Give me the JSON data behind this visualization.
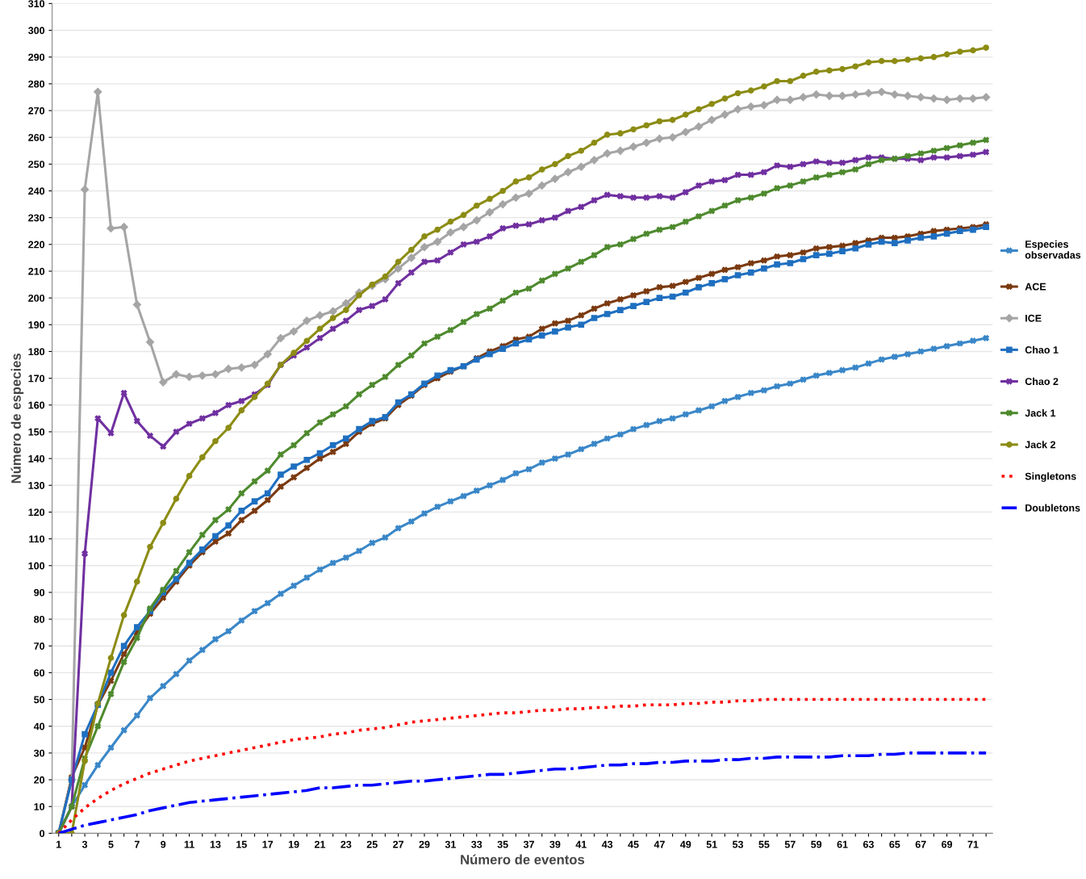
{
  "chart_data": {
    "type": "line",
    "xlabel": "Número de eventos",
    "ylabel": "Número de especies",
    "categories": [
      "1",
      null,
      "3",
      null,
      "5",
      null,
      "7",
      null,
      "9",
      null,
      "11",
      null,
      "13",
      null,
      "15",
      null,
      "17",
      null,
      "19",
      null,
      "21",
      null,
      "23",
      null,
      "25",
      null,
      "27",
      null,
      "29",
      null,
      "31",
      null,
      "33",
      null,
      "35",
      null,
      "37",
      null,
      "39",
      null,
      "41",
      null,
      "43",
      null,
      "45",
      null,
      "47",
      null,
      "49",
      null,
      "51",
      null,
      "53",
      null,
      "55",
      null,
      "57",
      null,
      "59",
      null,
      "61",
      null,
      "63",
      null,
      "65",
      null,
      "67",
      null,
      "69",
      null,
      "71",
      null
    ],
    "ylim": [
      0,
      310
    ],
    "yticks": [
      0,
      10,
      20,
      30,
      40,
      50,
      60,
      70,
      80,
      90,
      100,
      110,
      120,
      130,
      140,
      150,
      160,
      170,
      180,
      190,
      200,
      210,
      220,
      230,
      240,
      250,
      260,
      270,
      280,
      290,
      300,
      310
    ],
    "grid": "y",
    "legend": "right",
    "series": [
      {
        "name": "Especies observadas",
        "color": "#3a87c8",
        "marker": "cross",
        "line_style": "solid",
        "values": [
          0,
          10,
          18,
          25.5,
          32,
          38.5,
          44,
          50.5,
          55,
          59.5,
          64.5,
          68.5,
          72.5,
          75.5,
          79.5,
          83,
          86,
          89.5,
          92.5,
          95.5,
          98.5,
          101,
          103,
          105.5,
          108.5,
          110.5,
          114,
          116.5,
          119.5,
          122,
          124,
          126,
          128,
          130,
          132,
          134.5,
          136,
          138.5,
          140,
          141.5,
          143.5,
          145.5,
          147.5,
          149,
          151,
          152.5,
          154,
          155,
          156.5,
          158,
          159.5,
          161.5,
          163,
          164.5,
          165.5,
          167,
          168,
          169.5,
          171,
          172,
          173,
          174,
          175.5,
          177,
          178,
          179,
          180,
          181,
          182,
          183,
          184,
          185
        ]
      },
      {
        "name": "ACE",
        "color": "#7b3a10",
        "marker": "cross",
        "line_style": "solid",
        "values": [
          0,
          21,
          32,
          48,
          57,
          67,
          75,
          82,
          88,
          94,
          100,
          105,
          109,
          112,
          117,
          120.5,
          124.5,
          129.5,
          133,
          136.5,
          140,
          142.5,
          145.5,
          150,
          153,
          155,
          160,
          163.5,
          167.5,
          170,
          172.5,
          174.5,
          177.5,
          180,
          182,
          184.5,
          185.5,
          188.5,
          190.5,
          191.5,
          193.5,
          196,
          198,
          199.5,
          201,
          202.5,
          204,
          204.5,
          206,
          207.5,
          209,
          210.5,
          211.5,
          213,
          214,
          215.5,
          216,
          217,
          218.5,
          219,
          219.5,
          220.5,
          221.5,
          222.5,
          222.5,
          223,
          224,
          225,
          225.5,
          226,
          226.5,
          227.5
        ]
      },
      {
        "name": "ICE",
        "color": "#a5a5a5",
        "marker": "diamond",
        "line_style": "solid",
        "values": [
          0,
          20,
          240.5,
          277,
          226,
          226.5,
          197.5,
          183.5,
          168.5,
          171.5,
          170.5,
          171,
          171.5,
          173.5,
          174,
          175,
          179,
          185,
          187.5,
          191.5,
          193.5,
          195,
          198,
          202,
          204.5,
          207,
          211,
          215,
          219,
          221,
          224.5,
          226.5,
          229,
          232,
          235,
          237.5,
          239,
          242,
          244.5,
          247,
          249,
          251.5,
          254,
          255,
          256.5,
          258,
          259.5,
          260,
          262,
          264,
          266.5,
          268.5,
          270.5,
          271.5,
          272,
          274,
          274,
          275,
          276,
          275.5,
          275.5,
          276,
          276.5,
          277,
          276,
          275.5,
          275,
          274.5,
          274,
          274.5,
          274.5,
          275
        ]
      },
      {
        "name": "Chao 1",
        "color": "#1f6fc0",
        "marker": "square",
        "line_style": "solid",
        "values": [
          0,
          20,
          37,
          48,
          60,
          70,
          77,
          83,
          90,
          95,
          101,
          106,
          111,
          115,
          120.5,
          124,
          127,
          134,
          137,
          139.5,
          142,
          145,
          147.5,
          151,
          154,
          155.5,
          161,
          164,
          168,
          171,
          173,
          174.5,
          177,
          179,
          181,
          183,
          184.5,
          186,
          187.5,
          189,
          190,
          192.5,
          194,
          195.5,
          197,
          198.5,
          200,
          200.5,
          202,
          204,
          205.5,
          207,
          208.5,
          209.5,
          211,
          212.5,
          213,
          214.5,
          216,
          216.5,
          217.5,
          218.5,
          220,
          221,
          220.5,
          221.5,
          222.5,
          223,
          224,
          225,
          225.5,
          226.5
        ]
      },
      {
        "name": "Chao 2",
        "color": "#7030a0",
        "marker": "cross",
        "line_style": "solid",
        "values": [
          0,
          10,
          104.5,
          155,
          149.5,
          164.5,
          154,
          148.5,
          144.5,
          150,
          153,
          155,
          157,
          160,
          161.5,
          164,
          167.5,
          175,
          178.5,
          181.5,
          185,
          188.5,
          191.5,
          195.5,
          197,
          199.5,
          205.5,
          209.5,
          213.5,
          214,
          217,
          220,
          221,
          223,
          226,
          227,
          227.5,
          229,
          230,
          232.5,
          234,
          236.5,
          238.5,
          238,
          237.5,
          237.5,
          238,
          237.5,
          239.5,
          242,
          243.5,
          244,
          246,
          246,
          247,
          249.5,
          249,
          250,
          251,
          250.5,
          250.5,
          251.5,
          252.5,
          252.5,
          252,
          252,
          251.5,
          252.5,
          252.5,
          253,
          253.5,
          254.5
        ]
      },
      {
        "name": "Jack 1",
        "color": "#4e8a2e",
        "marker": "cross",
        "line_style": "solid",
        "values": [
          0,
          10,
          28,
          40,
          52,
          64,
          73,
          84,
          91,
          98,
          105,
          111.5,
          117,
          121,
          127,
          131.5,
          135.5,
          141.5,
          145,
          149.5,
          153.5,
          156.5,
          159.5,
          164,
          167.5,
          170.5,
          175,
          178.5,
          183,
          185.5,
          188,
          191,
          194,
          196,
          199,
          202,
          203.5,
          206.5,
          209,
          211,
          213.5,
          216,
          219,
          220,
          222,
          224,
          225.5,
          226.5,
          228.5,
          230.5,
          232.5,
          234.5,
          236.5,
          237.5,
          239,
          241,
          242,
          243.5,
          245,
          246,
          247,
          248,
          250,
          251.5,
          252,
          253,
          254,
          255,
          256,
          257,
          258,
          259
        ]
      },
      {
        "name": "Jack 2",
        "color": "#8c8c14",
        "marker": "circle",
        "line_style": "solid",
        "values": [
          0,
          0,
          27,
          48.5,
          65.5,
          81.5,
          94,
          107,
          116,
          125,
          133.5,
          140.5,
          146.5,
          151.5,
          158,
          163,
          168,
          175,
          179.5,
          184,
          188.5,
          192.5,
          195.5,
          201,
          205,
          208,
          213.5,
          218,
          223,
          225.5,
          228.5,
          231,
          234.5,
          237,
          240,
          243.5,
          245,
          248,
          250,
          253,
          255,
          258,
          261,
          261.5,
          263,
          264.5,
          266,
          266.5,
          268.5,
          270.5,
          272.5,
          274.5,
          276.5,
          277.5,
          279,
          281,
          281,
          283,
          284.5,
          285,
          285.5,
          286.5,
          288,
          288.5,
          288.5,
          289,
          289.5,
          290,
          291,
          292,
          292.5,
          293.5
        ]
      },
      {
        "name": "Singletons",
        "color": "#ff0000",
        "marker": "none",
        "line_style": "dotted",
        "values": [
          0,
          5,
          9.5,
          13,
          16,
          18.5,
          20.5,
          22.5,
          24,
          25.5,
          27,
          28,
          29,
          30,
          31,
          32,
          33,
          34,
          35,
          35.5,
          36,
          37,
          37.5,
          38.5,
          39,
          39.5,
          40.5,
          41.5,
          42,
          42.5,
          43,
          43.5,
          44,
          44.5,
          45,
          45,
          45.5,
          46,
          46,
          46.5,
          46.5,
          47,
          47,
          47.5,
          47.5,
          48,
          48,
          48,
          48.5,
          48.5,
          49,
          49,
          49.5,
          49.5,
          50,
          50,
          50,
          50,
          50,
          50,
          50,
          50,
          50,
          50,
          50,
          50,
          50,
          50,
          50,
          50,
          50,
          50
        ]
      },
      {
        "name": "Doubletons",
        "color": "#0000ff",
        "marker": "none",
        "line_style": "dashdot",
        "values": [
          0,
          1.5,
          3,
          4,
          5,
          6,
          7,
          8.5,
          9.5,
          10.5,
          11.5,
          12,
          12.5,
          13,
          13.5,
          14,
          14.5,
          15,
          15.5,
          16,
          17,
          17,
          17.5,
          18,
          18,
          18.5,
          19,
          19.5,
          19.5,
          20,
          20.5,
          21,
          21.5,
          22,
          22,
          22.5,
          23,
          23.5,
          24,
          24,
          24.5,
          25,
          25.5,
          25.5,
          26,
          26,
          26.5,
          26.5,
          27,
          27,
          27,
          27.5,
          27.5,
          28,
          28,
          28.5,
          28.5,
          28.5,
          28.5,
          28.5,
          29,
          29,
          29,
          29.5,
          29.5,
          30,
          30,
          30,
          30,
          30,
          30,
          30
        ]
      }
    ]
  }
}
